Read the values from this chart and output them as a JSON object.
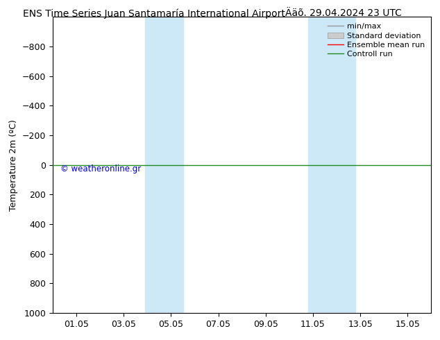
{
  "title": "ENS Time Series Juan Santamaría International Airport        Ääõ. 29.04.2024 23 UTC",
  "title_left": "ENS Time Series Juan Santamaría International Airport",
  "title_right": "Ääõ. 29.04.2024 23 UTC",
  "ylabel": "Temperature 2m (ºC)",
  "ylim_bottom": 1000,
  "ylim_top": -1000,
  "yticks": [
    -800,
    -600,
    -400,
    -200,
    0,
    200,
    400,
    600,
    800,
    1000
  ],
  "xlim_min": 0.0,
  "xlim_max": 16.0,
  "xtick_positions": [
    1,
    3,
    5,
    7,
    9,
    11,
    13,
    15
  ],
  "xtick_labels": [
    "01.05",
    "03.05",
    "05.05",
    "07.05",
    "09.05",
    "11.05",
    "13.05",
    "15.05"
  ],
  "background_color": "#ffffff",
  "plot_bg_color": "#ffffff",
  "shaded_bands": [
    {
      "xstart": 3.9,
      "xend": 5.5
    },
    {
      "xstart": 10.8,
      "xend": 12.8
    }
  ],
  "shaded_color": "#cde8f7",
  "horizontal_line_y": 0,
  "horizontal_line_color": "#228B22",
  "copyright_text": "© weatheronline.gr",
  "copyright_color": "#0000cc",
  "legend_labels": [
    "min/max",
    "Standard deviation",
    "Ensemble mean run",
    "Controll run"
  ],
  "legend_colors": [
    "#999999",
    "#cccccc",
    "#ff0000",
    "#228B22"
  ],
  "title_fontsize": 10,
  "axis_label_fontsize": 9,
  "tick_fontsize": 9,
  "legend_fontsize": 8
}
